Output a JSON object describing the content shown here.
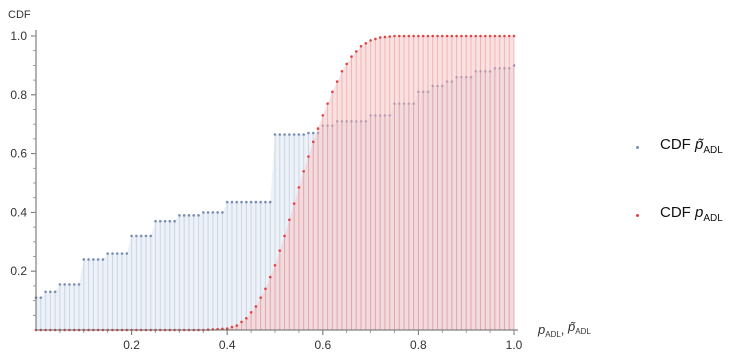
{
  "chart_data": {
    "type": "area",
    "ylabel": "CDF",
    "xlabel": "p_ADL, p̃_ADL",
    "xlim": [
      0,
      1.0
    ],
    "ylim": [
      0,
      1.0
    ],
    "x_ticks": [
      "0.2",
      "0.4",
      "0.6",
      "0.8",
      "1.0"
    ],
    "y_ticks": [
      "0.2",
      "0.4",
      "0.6",
      "0.8",
      "1.0"
    ],
    "grid": false,
    "legend_position": "right",
    "series": [
      {
        "name": "CDF p̃_ADL",
        "color": "#7b8fb5",
        "fill": "#dfe6f2",
        "style": "step",
        "x": [
          0,
          0.02,
          0.05,
          0.1,
          0.15,
          0.2,
          0.25,
          0.3,
          0.35,
          0.4,
          0.5,
          0.57,
          0.6,
          0.63,
          0.7,
          0.75,
          0.8,
          0.83,
          0.86,
          0.88,
          0.92,
          0.96,
          1.0
        ],
        "values": [
          0.11,
          0.13,
          0.155,
          0.24,
          0.26,
          0.32,
          0.37,
          0.39,
          0.4,
          0.435,
          0.665,
          0.67,
          0.695,
          0.71,
          0.73,
          0.77,
          0.81,
          0.83,
          0.845,
          0.86,
          0.88,
          0.89,
          0.9
        ]
      },
      {
        "name": "CDF p_ADL",
        "color": "#e04545",
        "fill": "#f6c9c9",
        "style": "smooth",
        "x": [
          0,
          0.35,
          0.4,
          0.42,
          0.44,
          0.46,
          0.48,
          0.5,
          0.52,
          0.54,
          0.56,
          0.58,
          0.6,
          0.62,
          0.64,
          0.66,
          0.68,
          0.7,
          0.72,
          0.75,
          0.8,
          1.0
        ],
        "values": [
          0,
          0,
          0.005,
          0.015,
          0.04,
          0.08,
          0.14,
          0.22,
          0.32,
          0.43,
          0.54,
          0.64,
          0.73,
          0.81,
          0.88,
          0.93,
          0.965,
          0.985,
          0.995,
          1.0,
          1.0,
          1.0
        ]
      }
    ]
  },
  "labels": {
    "ylabel": "CDF",
    "xlabel_main": "p",
    "xlabel_sub": "ADL",
    "xlabel_sep": ", ",
    "xlabel_main2": "p̃",
    "xlabel_sub2": "ADL",
    "legend_prefix": "CDF",
    "legend1_symbol": "p̃",
    "legend1_sub": "ADL",
    "legend2_symbol": "p",
    "legend2_sub": "ADL"
  }
}
